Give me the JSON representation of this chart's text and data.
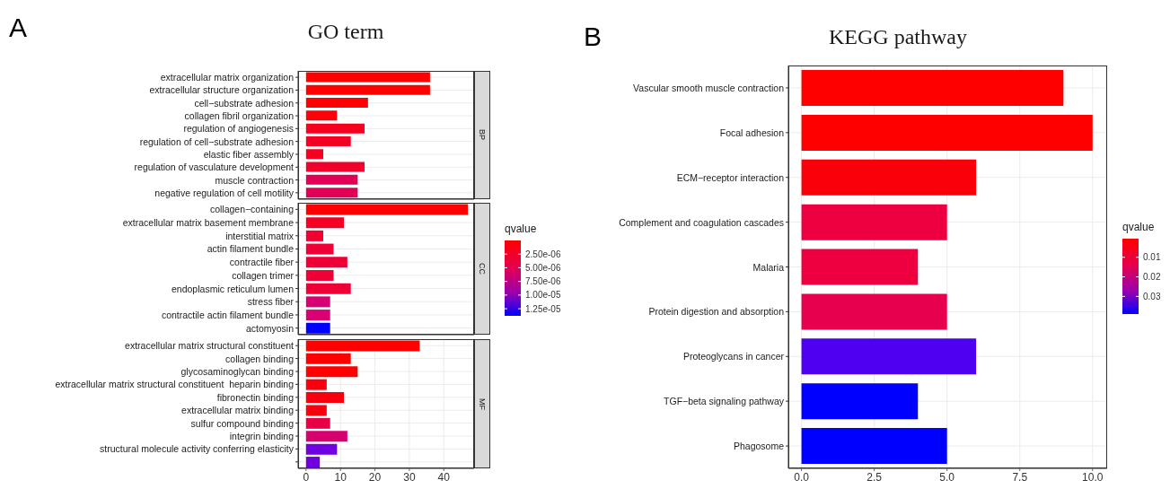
{
  "chart_data": [
    {
      "type": "bar",
      "orientation": "horizontal",
      "title": "GO term",
      "annotations": [
        "A"
      ],
      "y2label": "BP",
      "tick_labels": "y",
      "grid": true,
      "categories": [
        "extracellular matrix organization",
        "extracellular structure organization",
        "cell−substrate adhesion",
        "collagen fibril organization",
        "regulation of angiogenesis",
        "regulation of cell−substrate adhesion",
        "elastic fiber assembly",
        "regulation of vasculature development",
        "muscle contraction",
        "negative regulation of cell motility"
      ],
      "values": [
        36,
        36,
        18,
        9,
        17,
        13,
        5,
        17,
        15,
        15
      ],
      "colors": [
        "#ff0000",
        "#ff0000",
        "#fe0004",
        "#fd0008",
        "#f5001e",
        "#f30022",
        "#f5001e",
        "#f0002a",
        "#e20057",
        "#e20057"
      ],
      "xlim": [
        -2.3,
        48.8
      ],
      "xticks": [
        0,
        10,
        20,
        30,
        40
      ]
    },
    {
      "type": "bar",
      "orientation": "horizontal",
      "y2label": "CC",
      "tick_labels": "y",
      "grid": true,
      "categories": [
        "collagen−containing",
        "extracellular matrix basement membrane",
        "interstitial matrix",
        "actin filament bundle",
        "contractile fiber",
        "collagen trimer",
        "endoplasmic reticulum lumen",
        "stress fiber",
        "contractile actin filament bundle",
        "actomyosin"
      ],
      "values": [
        47,
        11,
        5,
        8,
        12,
        8,
        13,
        7,
        7,
        7
      ],
      "colors": [
        "#ff0000",
        "#f40024",
        "#f10030",
        "#ee0036",
        "#ee0036",
        "#ee0036",
        "#ee0036",
        "#d80072",
        "#d80072",
        "#0000ff"
      ],
      "xlim": [
        -2.3,
        48.8
      ],
      "xticks": [
        0,
        10,
        20,
        30,
        40
      ],
      "clabel": "qvalue",
      "clim": [
        0,
        1.38e-05
      ],
      "cticks": [
        {
          "value": 2.5e-06,
          "label": "2.50e-06"
        },
        {
          "value": 5e-06,
          "label": "5.00e-06"
        },
        {
          "value": 7.5e-06,
          "label": "7.50e-06"
        },
        {
          "value": 1e-05,
          "label": "1.00e-05"
        },
        {
          "value": 1.25e-05,
          "label": "1.25e-05"
        }
      ]
    },
    {
      "type": "bar",
      "orientation": "horizontal",
      "y2label": "MF",
      "grid": true,
      "categories": [
        "extracellular matrix structural constituent",
        "collagen binding",
        "glycosaminoglycan binding",
        "extracellular matrix structural constituent  heparin binding",
        "fibronectin binding",
        "extracellular matrix binding",
        "sulfur compound binding",
        "integrin binding",
        "structural molecule activity conferring elasticity",
        null
      ],
      "values": [
        33,
        13,
        15,
        6,
        11,
        6,
        7,
        12,
        9,
        4
      ],
      "colors": [
        "#ff0000",
        "#ff0000",
        "#ff0000",
        "#f8000e",
        "#f8000e",
        "#f8000e",
        "#e80045",
        "#d8006e",
        "#7000e0",
        "#7000e0"
      ],
      "xlim": [
        -2.3,
        48.8
      ],
      "xticks": [
        0,
        10,
        20,
        30,
        40
      ]
    },
    {
      "type": "bar",
      "orientation": "horizontal",
      "title": "KEGG pathway",
      "annotations": [
        "B"
      ],
      "grid": true,
      "categories": [
        "Vascular smooth muscle contraction",
        "Focal adhesion",
        "ECM−receptor interaction",
        "Complement and coagulation cascades",
        "Malaria",
        "Protein digestion and absorption",
        "Proteoglycans in cancer",
        "TGF−beta signaling pathway",
        "Phagosome"
      ],
      "values": [
        9,
        10,
        6,
        5,
        4,
        5,
        6,
        4,
        5
      ],
      "colors": [
        "#ff0000",
        "#ff0000",
        "#fa000a",
        "#ee0040",
        "#ee0040",
        "#e6004e",
        "#5000f0",
        "#0000ff",
        "#0000ff"
      ],
      "xlim": [
        -0.45,
        10.5
      ],
      "xticks": [
        {
          "value": 0,
          "label": "0.0"
        },
        {
          "value": 2.5,
          "label": "2.5"
        },
        {
          "value": 5,
          "label": "5.0"
        },
        {
          "value": 7.5,
          "label": "7.5"
        },
        {
          "value": 10,
          "label": "10.0"
        }
      ],
      "clabel": "qvalue",
      "clim": [
        0.0005,
        0.039
      ],
      "cticks": [
        0.01,
        0.02,
        0.03
      ]
    }
  ]
}
